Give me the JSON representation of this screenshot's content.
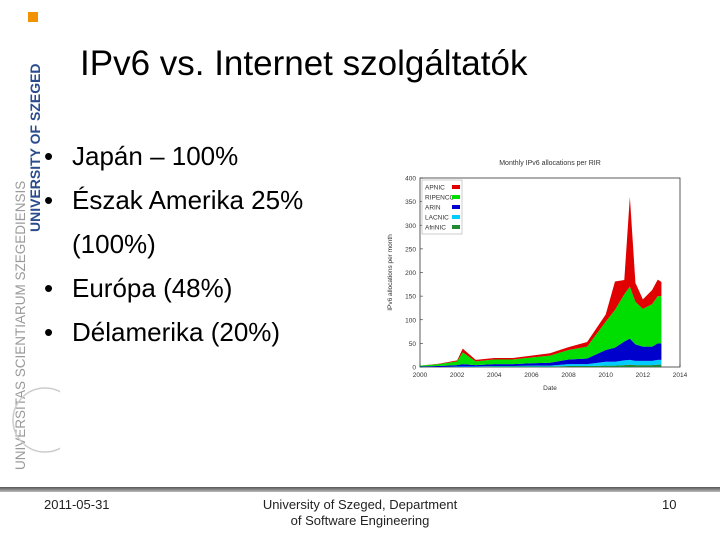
{
  "logo": {
    "university": "UNIVERSITY OF SZEGED",
    "latin": "UNIVERSITAS SCIENTIARUM SZEGEDIENSIS"
  },
  "header": {
    "title": "IPv6 vs. Internet szolgáltatók"
  },
  "bullets": [
    "Japán – 100%",
    "Észak Amerika 25% (100%)",
    "Európa (48%)",
    "Délamerika (20%)"
  ],
  "footer": {
    "date": "2011-05-31",
    "affiliation": [
      "University of Szeged, Department",
      "of Software Engineering"
    ],
    "page": "10"
  },
  "chart_data": {
    "type": "stacked_area",
    "title": "Monthly IPv6 allocations per RIR",
    "x_label": "Date",
    "y_label": "IPv6 allocations per month",
    "x": [
      2000,
      2001,
      2002,
      2002.3,
      2003,
      2004,
      2005,
      2006,
      2007,
      2008,
      2009,
      2010,
      2010.5,
      2011,
      2011.3,
      2011.6,
      2012,
      2012.5,
      2012.8,
      2013
    ],
    "series": [
      {
        "name": "APNIC",
        "color": "#e00000",
        "values": [
          0,
          1,
          2,
          8,
          3,
          3,
          3,
          4,
          5,
          6,
          10,
          15,
          60,
          30,
          190,
          40,
          20,
          30,
          35,
          30
        ]
      },
      {
        "name": "RIPENCC",
        "color": "#00dd00",
        "values": [
          2,
          4,
          8,
          25,
          8,
          10,
          10,
          12,
          15,
          20,
          25,
          60,
          80,
          100,
          110,
          90,
          80,
          90,
          100,
          100
        ]
      },
      {
        "name": "ARIN",
        "color": "#0000cc",
        "values": [
          1,
          2,
          3,
          5,
          3,
          4,
          4,
          5,
          6,
          10,
          12,
          25,
          30,
          40,
          45,
          35,
          30,
          30,
          35,
          35
        ]
      },
      {
        "name": "LACNIC",
        "color": "#00ccff",
        "values": [
          0,
          0,
          1,
          1,
          1,
          1,
          1,
          2,
          2,
          4,
          4,
          8,
          8,
          10,
          10,
          9,
          9,
          9,
          10,
          10
        ]
      },
      {
        "name": "AfriNIC",
        "color": "#228833",
        "values": [
          0,
          0,
          0,
          0,
          0,
          1,
          1,
          1,
          1,
          2,
          2,
          3,
          3,
          4,
          5,
          4,
          4,
          4,
          5,
          5
        ]
      }
    ],
    "xlim": [
      2000,
      2014
    ],
    "xticks": [
      2000,
      2002,
      2004,
      2006,
      2008,
      2010,
      2012,
      2014
    ],
    "ylim": [
      0,
      400
    ],
    "yticks": [
      0,
      50,
      100,
      150,
      200,
      250,
      300,
      350,
      400
    ],
    "legend": "upper left"
  }
}
